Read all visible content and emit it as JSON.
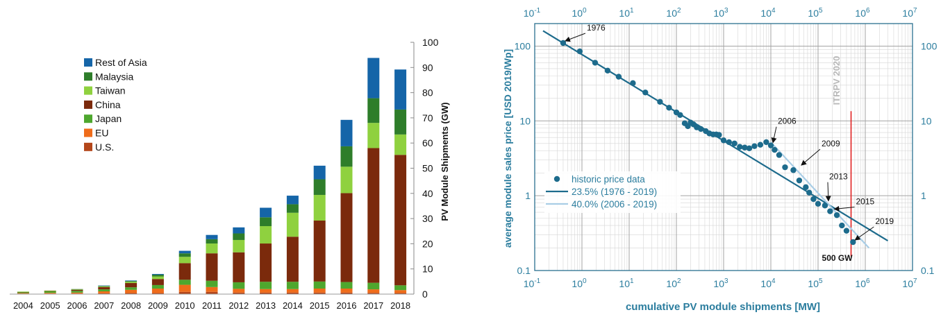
{
  "chart_data": [
    {
      "type": "bar",
      "stacked": true,
      "categories": [
        "2004",
        "2005",
        "2006",
        "2007",
        "2008",
        "2009",
        "2010",
        "2011",
        "2012",
        "2013",
        "2014",
        "2015",
        "2016",
        "2017",
        "2018"
      ],
      "series": [
        {
          "name": "U.S.",
          "color": "#b3461a",
          "values": [
            0.2,
            0.2,
            0.2,
            0.3,
            0.4,
            0.4,
            0.9,
            0.9,
            0.6,
            0.6,
            0.6,
            0.6,
            0.6,
            0.5,
            0.4
          ]
        },
        {
          "name": "EU",
          "color": "#ef6c1a",
          "values": [
            0.2,
            0.3,
            0.4,
            0.8,
            1.3,
            1.8,
            2.8,
            1.9,
            1.5,
            1.4,
            1.4,
            1.6,
            1.6,
            1.4,
            1.2
          ]
        },
        {
          "name": "Japan",
          "color": "#4ea72e",
          "values": [
            0.4,
            0.6,
            0.7,
            0.8,
            1.0,
            1.4,
            2.0,
            2.5,
            2.6,
            2.9,
            2.9,
            2.8,
            2.6,
            2.6,
            1.9
          ]
        },
        {
          "name": "China",
          "color": "#7b2a0c",
          "values": [
            0.1,
            0.2,
            0.4,
            0.9,
            1.7,
            2.4,
            6.6,
            10.9,
            11.9,
            15.2,
            17.9,
            24.2,
            35.3,
            53.5,
            51.8
          ]
        },
        {
          "name": "Taiwan",
          "color": "#8fd13f",
          "values": [
            0.1,
            0.1,
            0.2,
            0.3,
            0.5,
            1.0,
            2.5,
            3.9,
            4.9,
            6.9,
            9.5,
            10.2,
            10.5,
            10.0,
            8.1
          ]
        },
        {
          "name": "Malaysia",
          "color": "#2e7d2a",
          "values": [
            0,
            0,
            0.1,
            0.2,
            0.3,
            0.7,
            1.4,
            1.7,
            2.6,
            3.5,
            3.4,
            6.2,
            8.1,
            9.8,
            9.9
          ]
        },
        {
          "name": "Rest of Asia",
          "color": "#1565a8",
          "values": [
            0,
            0,
            0,
            0.1,
            0.2,
            0.3,
            1.0,
            1.7,
            2.4,
            3.8,
            3.4,
            5.4,
            10.5,
            16.0,
            15.9
          ]
        }
      ],
      "legend_order": [
        "Rest of Asia",
        "Malaysia",
        "Taiwan",
        "China",
        "Japan",
        "EU",
        "U.S."
      ],
      "ylabel": "PV Module Shipments (GW)",
      "ylim": [
        0,
        100
      ],
      "yticks": [
        0,
        10,
        20,
        30,
        40,
        50,
        60,
        70,
        80,
        90,
        100
      ],
      "legend_position": "top-left",
      "grid": false
    },
    {
      "type": "scatter",
      "xscale": "log",
      "yscale": "log",
      "xlabel": "cumulative PV module shipments [MW]",
      "ylabel": "average module sales price [USD 2019/Wp]",
      "xlim": [
        0.1,
        10000000
      ],
      "ylim": [
        0.1,
        200
      ],
      "xtick_labels": [
        "10-1",
        "100",
        "101",
        "102",
        "103",
        "104",
        "105",
        "106",
        "107"
      ],
      "ytick_labels": [
        "0.1",
        "1",
        "10",
        "100"
      ],
      "grid": true,
      "legend_position": "lower-left",
      "series": [
        {
          "name": "historic price data",
          "kind": "points",
          "color": "#1d6b8c",
          "x": [
            0.4,
            0.9,
            1.9,
            3.5,
            6,
            12,
            22,
            45,
            70,
            100,
            120,
            150,
            175,
            200,
            230,
            270,
            330,
            420,
            500,
            600,
            700,
            800,
            1000,
            1300,
            1700,
            2200,
            2800,
            3500,
            4500,
            6000,
            8000,
            10000,
            12000,
            15000,
            20000,
            30000,
            40000,
            55000,
            65000,
            80000,
            100000,
            140000,
            180000,
            250000,
            320000,
            400000,
            550000
          ],
          "y": [
            110,
            85,
            60,
            47,
            39,
            32,
            24,
            18,
            15,
            13,
            12,
            9.3,
            8.5,
            9.5,
            9,
            8.2,
            7.8,
            7.3,
            6.8,
            6.6,
            6.6,
            6.5,
            5.5,
            5.2,
            5,
            4.5,
            4.4,
            4.3,
            4.6,
            4.8,
            5.2,
            4.7,
            4.1,
            3.5,
            2.4,
            2.2,
            1.6,
            1.3,
            1.1,
            0.9,
            0.78,
            0.74,
            0.62,
            0.55,
            0.4,
            0.34,
            0.24
          ]
        },
        {
          "name": "23.5% (1976 - 2019)",
          "kind": "line",
          "color": "#1d6b8c",
          "x": [
            0.15,
            3000000
          ],
          "y": [
            160,
            0.25
          ]
        },
        {
          "name": "40.0% (2006 - 2019)",
          "kind": "line",
          "color": "#a9cde6",
          "x": [
            10000,
            1200000
          ],
          "y": [
            5.2,
            0.2
          ]
        }
      ],
      "annotations": [
        {
          "text": "1976",
          "x": 0.4,
          "y": 110
        },
        {
          "text": "2006",
          "x": 10000,
          "y": 4.8
        },
        {
          "text": "2009",
          "x": 40000,
          "y": 2.4
        },
        {
          "text": "2013",
          "x": 150000,
          "y": 0.8
        },
        {
          "text": "2015",
          "x": 200000,
          "y": 0.62
        },
        {
          "text": "2019",
          "x": 550000,
          "y": 0.24
        },
        {
          "text": "ITRPV 2020",
          "x": 400000,
          "y": 13
        },
        {
          "text": "500 GW",
          "x": 500000,
          "y": 0.14
        }
      ],
      "reference_line": {
        "x": 500000,
        "color": "#e02020"
      }
    }
  ]
}
